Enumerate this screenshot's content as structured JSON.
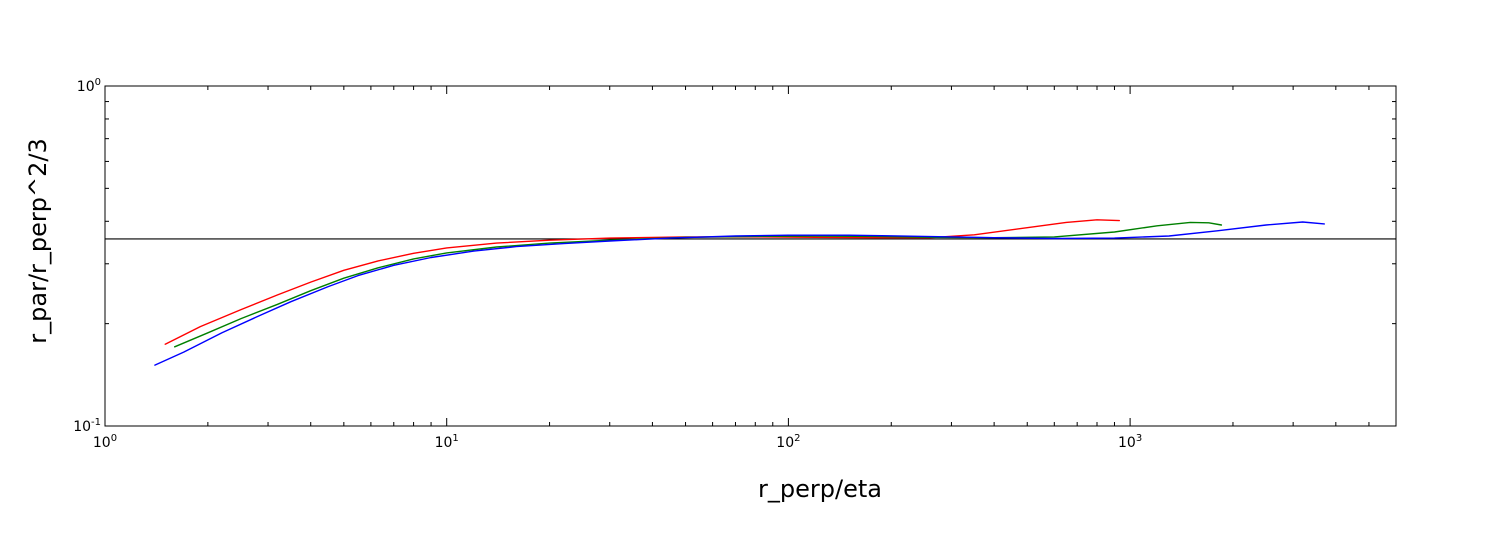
{
  "chart_data": {
    "type": "line",
    "title": "",
    "xlabel": "r_perp/eta",
    "ylabel": "r_par/r_perp^2/3",
    "xscale": "log",
    "yscale": "log",
    "xlim": [
      1,
      6000
    ],
    "ylim": [
      0.1,
      1
    ],
    "grid": false,
    "legend": "none",
    "x_major_ticks": [
      {
        "value": 1,
        "base": "10",
        "exp": "0"
      },
      {
        "value": 10,
        "base": "10",
        "exp": "1"
      },
      {
        "value": 100,
        "base": "10",
        "exp": "2"
      },
      {
        "value": 1000,
        "base": "10",
        "exp": "3"
      }
    ],
    "y_major_ticks": [
      {
        "value": 0.1,
        "base": "10",
        "exp": "-1"
      },
      {
        "value": 1,
        "base": "10",
        "exp": "0"
      }
    ],
    "reference_line": {
      "y": 0.355,
      "color": "#000000"
    },
    "series": [
      {
        "color": "#ff0000",
        "x": [
          1.5,
          1.9,
          2.5,
          3.2,
          4,
          5,
          6.3,
          8,
          10,
          14,
          20,
          30,
          50,
          80,
          120,
          180,
          260,
          350,
          500,
          650,
          800,
          930
        ],
        "y": [
          0.174,
          0.196,
          0.22,
          0.243,
          0.265,
          0.287,
          0.306,
          0.322,
          0.334,
          0.345,
          0.352,
          0.357,
          0.36,
          0.36,
          0.359,
          0.358,
          0.358,
          0.365,
          0.383,
          0.397,
          0.404,
          0.402
        ]
      },
      {
        "color": "#008000",
        "x": [
          1.6,
          2,
          2.5,
          3.2,
          4,
          5,
          6.3,
          8,
          10,
          14,
          20,
          30,
          50,
          80,
          120,
          180,
          260,
          400,
          600,
          900,
          1200,
          1500,
          1700,
          1850
        ],
        "y": [
          0.171,
          0.188,
          0.207,
          0.228,
          0.25,
          0.272,
          0.292,
          0.31,
          0.323,
          0.336,
          0.345,
          0.352,
          0.359,
          0.361,
          0.362,
          0.361,
          0.359,
          0.358,
          0.36,
          0.372,
          0.388,
          0.397,
          0.396,
          0.39
        ]
      },
      {
        "color": "#0000ff",
        "x": [
          1.4,
          1.7,
          2.2,
          2.8,
          3.5,
          4.5,
          5.5,
          7,
          9,
          12,
          16,
          22,
          30,
          45,
          70,
          100,
          150,
          250,
          400,
          600,
          900,
          1300,
          1800,
          2500,
          3200,
          3700
        ],
        "y": [
          0.151,
          0.165,
          0.188,
          0.21,
          0.232,
          0.257,
          0.277,
          0.297,
          0.313,
          0.327,
          0.337,
          0.344,
          0.35,
          0.357,
          0.362,
          0.364,
          0.364,
          0.361,
          0.358,
          0.356,
          0.357,
          0.362,
          0.375,
          0.39,
          0.398,
          0.393
        ]
      }
    ]
  }
}
